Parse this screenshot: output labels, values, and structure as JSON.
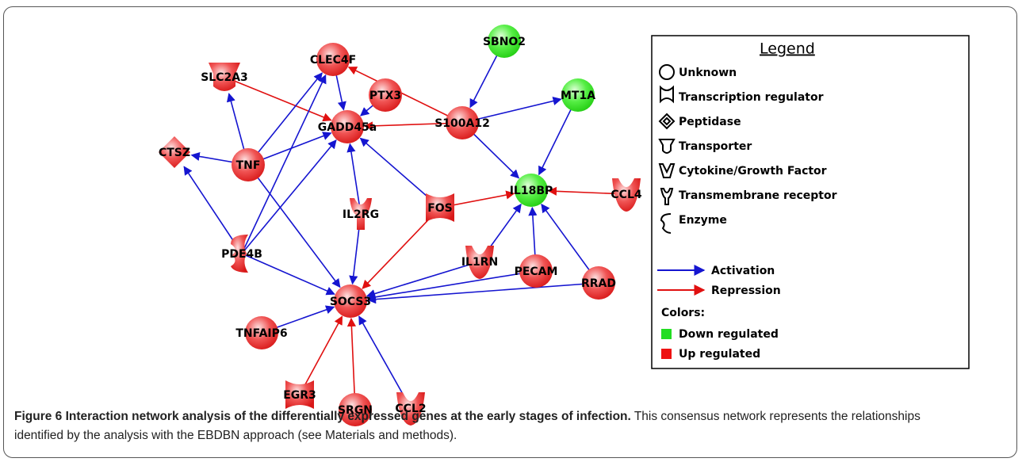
{
  "nodes": [
    {
      "label": "CLEC4F"
    },
    {
      "label": "SBNO2"
    },
    {
      "label": "SLC2A3"
    },
    {
      "label": "PTX3"
    },
    {
      "label": "MT1A"
    },
    {
      "label": "S100A12"
    },
    {
      "label": "GADD45a"
    },
    {
      "label": "CTSZ"
    },
    {
      "label": "TNF"
    },
    {
      "label": "IL18BP"
    },
    {
      "label": "CCL4"
    },
    {
      "label": "FOS"
    },
    {
      "label": "IL2RG"
    },
    {
      "label": "PDE4B"
    },
    {
      "label": "IL1RN"
    },
    {
      "label": "PECAM"
    },
    {
      "label": "RRAD"
    },
    {
      "label": "SOCS3"
    },
    {
      "label": "TNFAIP6"
    },
    {
      "label": "EGR3"
    },
    {
      "label": "SRGN"
    },
    {
      "label": "CCL2"
    }
  ],
  "legend": {
    "title": "Legend",
    "shapes": [
      "Unknown",
      "Transcription regulator",
      "Peptidase",
      "Transporter",
      "Cytokine/Growth Factor",
      "Transmembrane receptor",
      "Enzyme"
    ],
    "edges": [
      "Activation",
      "Repression"
    ],
    "colors_title": "Colors:",
    "colors": [
      "Down regulated",
      "Up regulated"
    ]
  },
  "caption": {
    "title": "Figure 6 Interaction network analysis of the differentially expressed genes at the early stages of infection.",
    "text": "This consensus network represents the relationships identified by the analysis with the EBDBN approach (see Materials and methods)."
  }
}
